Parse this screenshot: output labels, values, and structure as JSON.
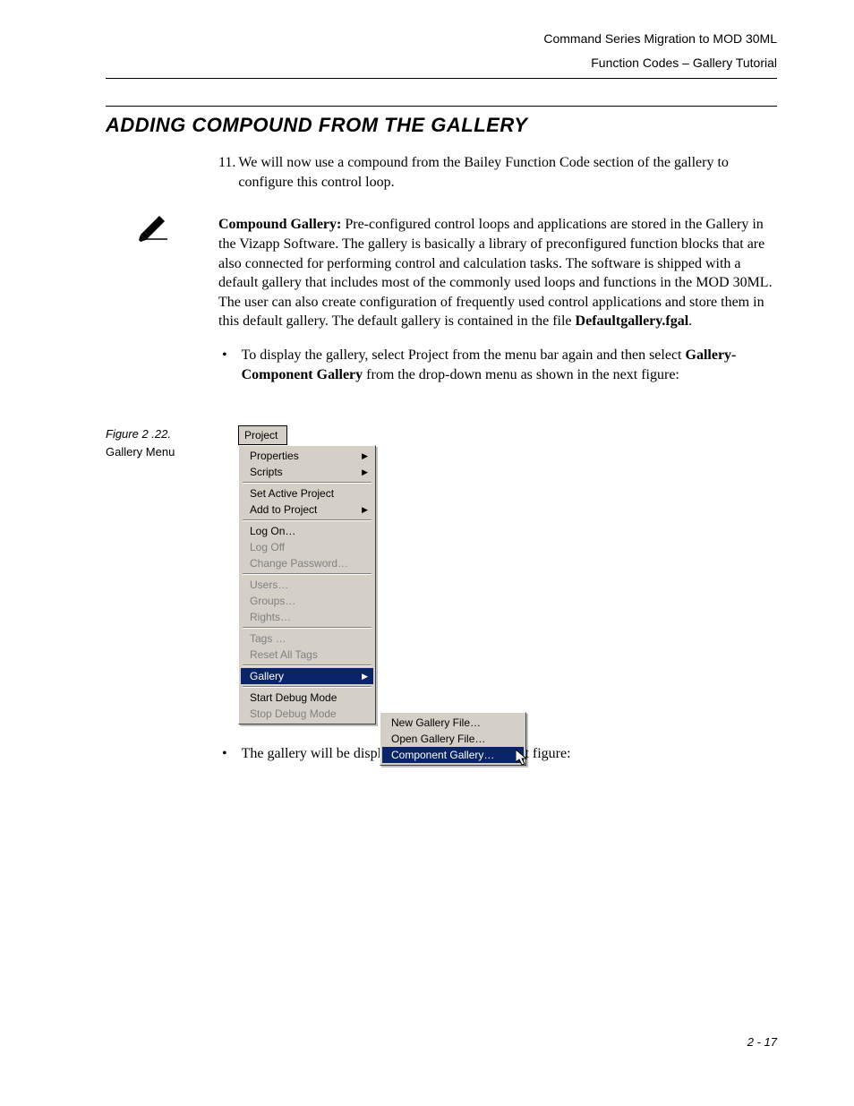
{
  "header": {
    "line1": "Command Series Migration to MOD 30ML",
    "line2": "Function Codes – Gallery Tutorial"
  },
  "section_heading": "ADDING COMPOUND FROM THE GALLERY",
  "step": {
    "number": "11.",
    "text": "We will now use a compound from the Bailey Function Code section of the gallery to configure this control loop."
  },
  "note": {
    "label": "Compound Gallery:",
    "text_after_label": " Pre-configured control loops and applications are stored in the Gallery in the Vizapp Software. The gallery is basically a library of preconfigured function blocks that are also connected for performing control and calculation tasks. The software is shipped with a default gallery that includes most of the commonly used loops and functions in the MOD 30ML. The user can also create configuration of frequently used control applications and store them in this default gallery. The default gallery is contained in the file ",
    "bold_file": "Defaultgallery.fgal",
    "tail": "."
  },
  "bullet1": {
    "lead": "To display the gallery, select Project from the menu bar again and then select ",
    "bold": "Gallery-Component Gallery",
    "tail": " from the drop-down menu as shown in the next figure:"
  },
  "figure": {
    "number": "Figure 2 .22.",
    "caption": "Gallery Menu"
  },
  "menu": {
    "menubar_label": "Project",
    "groups": [
      [
        {
          "label": "Properties",
          "submenu": true,
          "disabled": false
        },
        {
          "label": "Scripts",
          "submenu": true,
          "disabled": false
        }
      ],
      [
        {
          "label": "Set Active Project",
          "submenu": false,
          "disabled": false
        },
        {
          "label": "Add to Project",
          "submenu": true,
          "disabled": false
        }
      ],
      [
        {
          "label": "Log On…",
          "submenu": false,
          "disabled": false
        },
        {
          "label": "Log Off",
          "submenu": false,
          "disabled": true
        },
        {
          "label": "Change Password…",
          "submenu": false,
          "disabled": true
        }
      ],
      [
        {
          "label": "Users…",
          "submenu": false,
          "disabled": true
        },
        {
          "label": "Groups…",
          "submenu": false,
          "disabled": true
        },
        {
          "label": "Rights…",
          "submenu": false,
          "disabled": true
        }
      ],
      [
        {
          "label": "Tags …",
          "submenu": false,
          "disabled": true
        },
        {
          "label": "Reset All Tags",
          "submenu": false,
          "disabled": true
        }
      ],
      [
        {
          "label": "Gallery",
          "submenu": true,
          "disabled": false,
          "selected": true
        }
      ],
      [
        {
          "label": "Start Debug Mode",
          "submenu": false,
          "disabled": false
        },
        {
          "label": "Stop Debug Mode",
          "submenu": false,
          "disabled": true
        }
      ]
    ],
    "submenu_items": [
      {
        "label": "New Gallery File…",
        "selected": false
      },
      {
        "label": "Open Gallery File…",
        "selected": false
      },
      {
        "label": "Component Gallery…",
        "selected": true
      }
    ]
  },
  "bullet2": "The gallery will be displayed as shown in the next figure:",
  "page_number": "2 - 17",
  "colors": {
    "menu_bg": "#d4d0c8",
    "menu_highlight": "#0a246a",
    "menu_disabled": "#808080"
  }
}
